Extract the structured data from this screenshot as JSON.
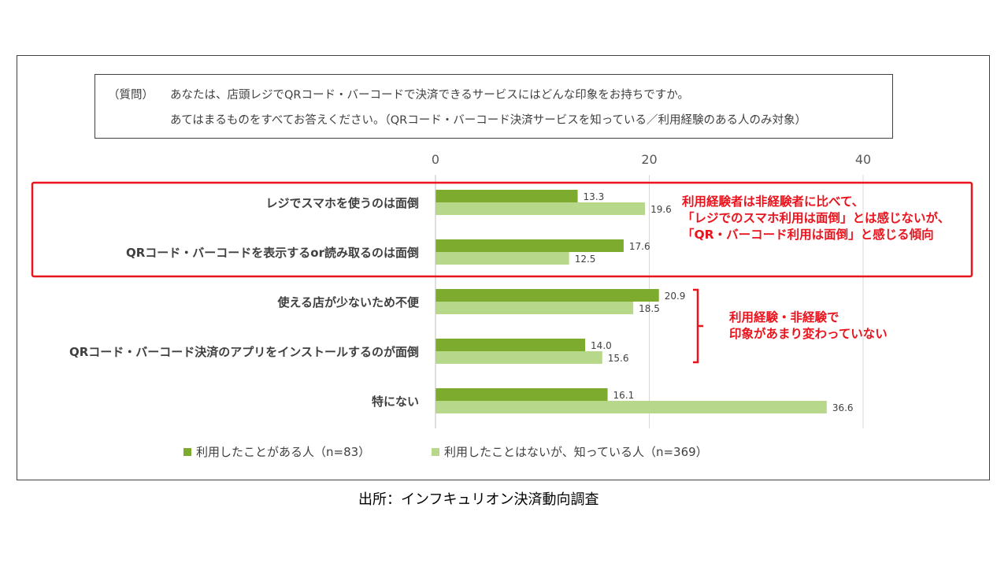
{
  "question": {
    "label": "（質問）",
    "line1": "あなたは、店頭レジでQRコード・バーコードで決済できるサービスにはどんな印象をお持ちですか。",
    "line2": "あてはまるものをすべてお答えください。（QRコード・バーコード決済サービスを知っている／利用経験のある人のみ対象）"
  },
  "chart_data": {
    "type": "bar",
    "orientation": "horizontal",
    "categories": [
      "レジでスマホを使うのは面倒",
      "QRコード・バーコードを表示するor読み取るのは面倒",
      "使える店が少ないため不便",
      "QRコード・バーコード決済のアプリをインストールするのが面倒",
      "特にない"
    ],
    "series": [
      {
        "name": "利用したことがある人（n=83）",
        "values": [
          13.3,
          17.6,
          20.9,
          14.0,
          16.1
        ],
        "color": "#7dab2e"
      },
      {
        "name": "利用したことはないが、知っている人（n=369）",
        "values": [
          19.6,
          12.5,
          18.5,
          15.6,
          36.6
        ],
        "color": "#b7d88b"
      }
    ],
    "xlim": [
      0,
      40
    ],
    "xticks": [
      0,
      20,
      40
    ],
    "axis_position": "top",
    "grid": true,
    "legend_position": "bottom"
  },
  "callouts": {
    "first": [
      "利用経験者は非経験者に比べて、",
      "「レジでのスマホ利用は面倒」とは感じないが、",
      "「QR・バーコード利用は面倒」と感じる傾向"
    ],
    "second": [
      "利用経験・非経験で",
      "印象があまり変わっていない"
    ]
  },
  "colors": {
    "highlight": "#e8141e",
    "series1": "#7dab2e",
    "series2": "#b7d88b"
  },
  "source": "出所：インフキュリオン決済動向調査"
}
